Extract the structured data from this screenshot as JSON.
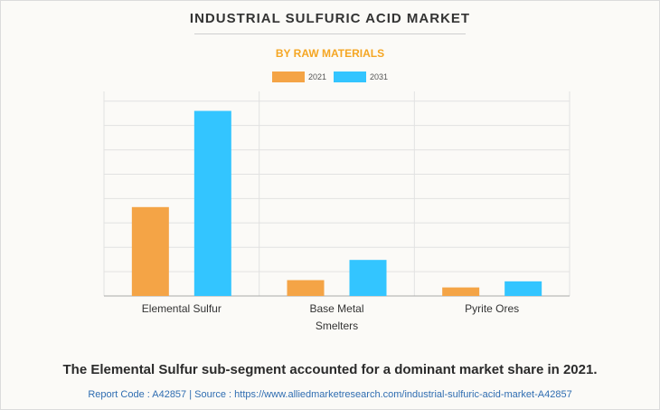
{
  "header": {
    "title": "INDUSTRIAL SULFURIC ACID MARKET",
    "subtitle": "BY RAW MATERIALS"
  },
  "footer": {
    "statement": "The Elemental Sulfur sub-segment accounted for a dominant market share in 2021.",
    "source": "Report Code : A42857  |  Source : https://www.alliedmarketresearch.com/industrial-sulfuric-acid-market-A42857"
  },
  "colors": {
    "series_2021": "#f4a446",
    "series_2031": "#33c5ff",
    "grid": "#e2e2e2",
    "axis": "#aaaaaa",
    "tick_text": "#333333"
  },
  "chart_data": {
    "type": "bar",
    "categories": [
      [
        "Elemental Sulfur"
      ],
      [
        "Base Metal",
        "Smelters"
      ],
      [
        "Pyrite Ores"
      ]
    ],
    "series": [
      {
        "name": "2021",
        "values": [
          36.5,
          6.5,
          3.5
        ]
      },
      {
        "name": "2031",
        "values": [
          76,
          14.8,
          6
        ]
      }
    ],
    "ylim": [
      0,
      84
    ],
    "ytick_step": 10,
    "grid": true,
    "legend": "top-center",
    "xlabel": "",
    "ylabel": ""
  }
}
